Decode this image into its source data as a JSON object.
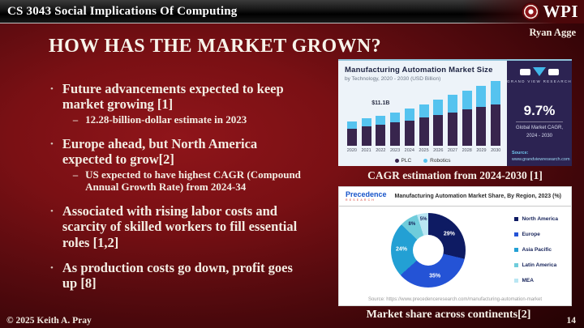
{
  "header": {
    "course_title": "CS 3043 Social Implications Of Computing",
    "brand": "WPI",
    "author": "Ryan Agge"
  },
  "slide": {
    "title": "HOW HAS THE MARKET GROWN?",
    "bullets": [
      {
        "text": "Future advancements expected to keep market growing [1]",
        "subs": [
          "12.28-billion-dollar estimate in 2023"
        ]
      },
      {
        "text": "Europe ahead, but North America expected to grow[2]",
        "subs": [
          "US expected to have highest CAGR (Compound Annual Growth Rate) from 2024-34"
        ]
      },
      {
        "text": "Associated with rising labor costs and scarcity of skilled workers to fill essential roles [1,2]",
        "subs": []
      },
      {
        "text": "As production costs go down, profit goes up [8]",
        "subs": []
      }
    ],
    "footer": "© 2025 Keith A. Pray",
    "page_number": "14"
  },
  "figures": {
    "market_size": {
      "caption": "CAGR estimation from 2024-2030 [1]",
      "brand_name": "GRAND VIEW RESEARCH",
      "cagr_value": "9.7%",
      "cagr_label_line1": "Global Market CAGR,",
      "cagr_label_line2": "2024 - 2030",
      "source_label": "Source:",
      "source_url": "www.grandviewresearch.com"
    },
    "market_share": {
      "caption": "Market share across continents[2]",
      "brand_name": "Precedence",
      "brand_subname": "RESEARCH",
      "source": "Source: https://www.precedenceresearch.com/manufacturing-automation-market"
    }
  },
  "chart_data": [
    {
      "type": "bar",
      "stacked": true,
      "title": "Manufacturing Automation Market Size",
      "subtitle": "by Technology, 2020 - 2030 (USD Billion)",
      "categories": [
        "2020",
        "2021",
        "2022",
        "2023",
        "2024",
        "2025",
        "2026",
        "2027",
        "2028",
        "2029",
        "2030"
      ],
      "series": [
        {
          "name": "PLC",
          "color": "#38254d",
          "values": [
            6.4,
            7.2,
            7.8,
            8.6,
            9.2,
            10.3,
            11.3,
            12.3,
            13.4,
            14.3,
            15.2
          ]
        },
        {
          "name": "Robotics",
          "color": "#55c3ef",
          "values": [
            2.6,
            2.9,
            3.3,
            3.6,
            4.4,
            4.9,
            5.6,
            6.4,
            6.9,
            7.8,
            8.6
          ]
        }
      ],
      "annotation": {
        "label": "$11.1B",
        "category": "2022"
      },
      "ylim": [
        0,
        25
      ],
      "unit": "USD Billion",
      "legend_position": "bottom"
    },
    {
      "type": "pie",
      "donut": true,
      "title": "Manufacturing Automation Market Share, By Region, 2023 (%)",
      "slices": [
        {
          "label": "North America",
          "value": 29,
          "color": "#0e1b63"
        },
        {
          "label": "Europe",
          "value": 35,
          "color": "#2453d6"
        },
        {
          "label": "Asia Pacific",
          "value": 24,
          "color": "#23a0d4"
        },
        {
          "label": "Latin America",
          "value": 8,
          "color": "#6fccdb"
        },
        {
          "label": "MEA",
          "value": 5,
          "color": "#b9e6f3"
        }
      ],
      "legend_position": "right"
    }
  ]
}
